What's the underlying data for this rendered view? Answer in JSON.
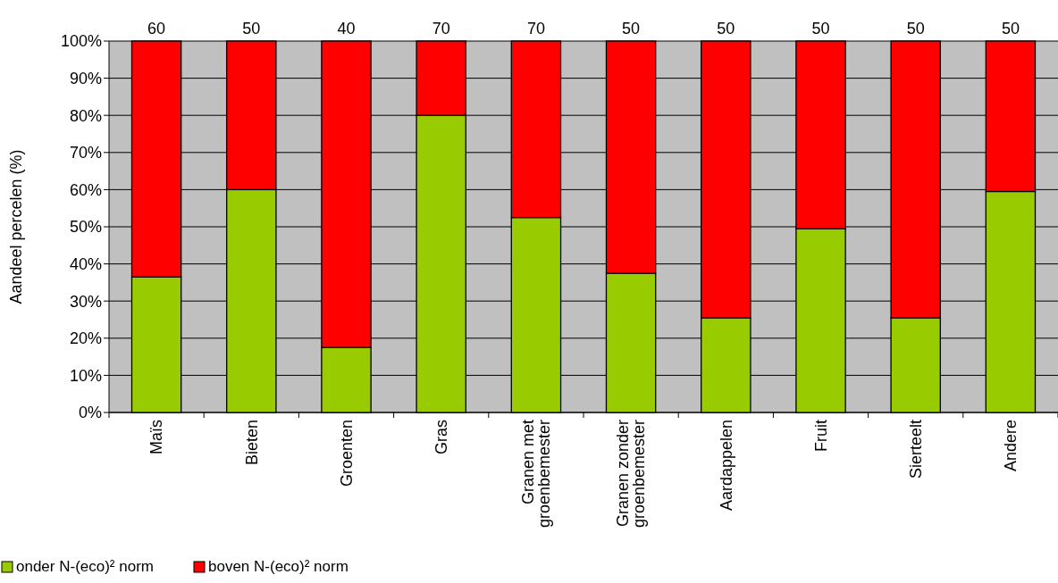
{
  "chart_data": {
    "type": "bar",
    "stacked": true,
    "ylabel": "Aandeel percelen (%)",
    "categories": [
      "Maïs",
      "Bieten",
      "Groenten",
      "Gras",
      "Granen met\ngroenbemester",
      "Granen zonder\ngroenbemester",
      "Aardappelen",
      "Fruit",
      "Sierteelt",
      "Andere"
    ],
    "series": [
      {
        "name": "onder N-(eco)² norm",
        "color": "#99cc00",
        "values": [
          36.5,
          60,
          17.5,
          80,
          52.5,
          37.5,
          25.5,
          49.5,
          25.5,
          59.5
        ]
      },
      {
        "name": "boven N-(eco)² norm",
        "color": "#ff0000",
        "values": [
          63.5,
          40,
          82.5,
          20,
          47.5,
          62.5,
          74.5,
          50.5,
          74.5,
          40.5
        ]
      }
    ],
    "ylim": [
      0,
      100
    ],
    "yticks": [
      {
        "value": 0,
        "label": "0%"
      },
      {
        "value": 10,
        "label": "10%"
      },
      {
        "value": 20,
        "label": "20%"
      },
      {
        "value": 30,
        "label": "30%"
      },
      {
        "value": 40,
        "label": "40%"
      },
      {
        "value": 50,
        "label": "50%"
      },
      {
        "value": 60,
        "label": "60%"
      },
      {
        "value": 70,
        "label": "70%"
      },
      {
        "value": 80,
        "label": "80%"
      },
      {
        "value": 90,
        "label": "90%"
      },
      {
        "value": 100,
        "label": "100%"
      }
    ],
    "grid": "y",
    "legend": "bottom left",
    "annotations": [
      {
        "text": "60",
        "x": "Maïs",
        "y": 100
      },
      {
        "text": "50",
        "x": "Bieten",
        "y": 100
      },
      {
        "text": "40",
        "x": "Groenten",
        "y": 100
      },
      {
        "text": "70",
        "x": "Gras",
        "y": 100
      },
      {
        "text": "70",
        "x": "Granen met\ngroenbemester",
        "y": 100
      },
      {
        "text": "50",
        "x": "Granen zonder\ngroenbemester",
        "y": 100
      },
      {
        "text": "50",
        "x": "Aardappelen",
        "y": 100
      },
      {
        "text": "50",
        "x": "Fruit",
        "y": 100
      },
      {
        "text": "50",
        "x": "Sierteelt",
        "y": 100
      },
      {
        "text": "50",
        "x": "Andere",
        "y": 100
      }
    ]
  }
}
